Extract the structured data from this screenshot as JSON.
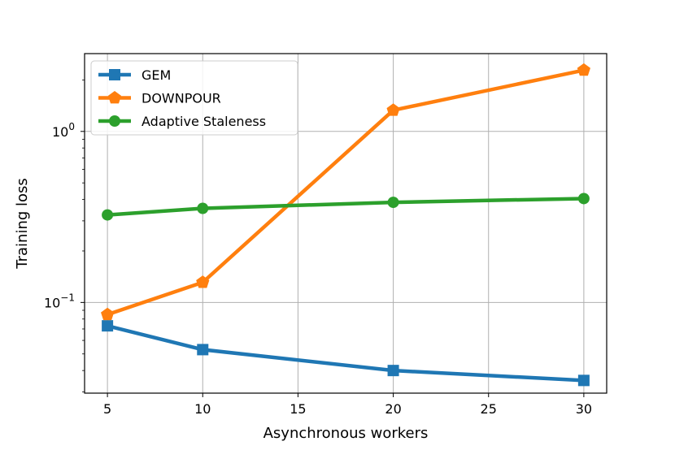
{
  "chart_data": {
    "type": "line",
    "title": "",
    "xlabel": "Asynchronous workers",
    "ylabel": "Training loss",
    "xlim": [
      3.8,
      31.2
    ],
    "ylim": [
      0.0295,
      2.85
    ],
    "yscale": "log",
    "grid": true,
    "legend_position": "top-left",
    "x_ticks": [
      5,
      10,
      15,
      20,
      25,
      30
    ],
    "x_tick_labels": [
      "5",
      "10",
      "15",
      "20",
      "25",
      "30"
    ],
    "y_ticks": [
      0.1,
      1.0
    ],
    "y_tick_labels": [
      {
        "base": "10",
        "exp": "−1"
      },
      {
        "base": "10",
        "exp": "0"
      }
    ],
    "series": [
      {
        "name": "GEM",
        "color": "#1f77b4",
        "marker": "square",
        "x": [
          5,
          10,
          20,
          30
        ],
        "y": [
          0.073,
          0.053,
          0.04,
          0.035
        ]
      },
      {
        "name": "DOWNPOUR",
        "color": "#ff7f0e",
        "marker": "pentagon",
        "x": [
          5,
          10,
          20,
          30
        ],
        "y": [
          0.085,
          0.131,
          1.33,
          2.28
        ]
      },
      {
        "name": "Adaptive Staleness",
        "color": "#2ca02c",
        "marker": "circle",
        "x": [
          5,
          10,
          20,
          30
        ],
        "y": [
          0.325,
          0.355,
          0.385,
          0.405
        ]
      }
    ]
  }
}
